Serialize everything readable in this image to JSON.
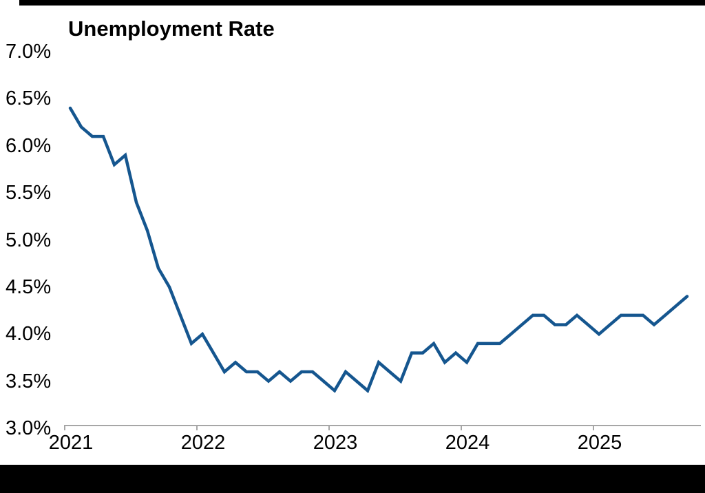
{
  "page": {
    "background_color": "#ffffff",
    "top_bar_color": "#000000",
    "bottom_bar_color": "#000000"
  },
  "chart_data": {
    "type": "line",
    "title": "Unemployment Rate",
    "frequency": "monthly",
    "x_start": "2021-01",
    "x_end": "2025-09",
    "x_tick_labels": [
      "2021",
      "2022",
      "2023",
      "2024",
      "2025"
    ],
    "y_ticks": [
      {
        "value": 3.0,
        "label": "3.0%"
      },
      {
        "value": 3.5,
        "label": "3.5%"
      },
      {
        "value": 4.0,
        "label": "4.0%"
      },
      {
        "value": 4.5,
        "label": "4.5%"
      },
      {
        "value": 5.0,
        "label": "5.0%"
      },
      {
        "value": 5.5,
        "label": "5.5%"
      },
      {
        "value": 6.0,
        "label": "6.0%"
      },
      {
        "value": 6.5,
        "label": "6.5%"
      },
      {
        "value": 7.0,
        "label": "7.0%"
      }
    ],
    "ylim": [
      3.0,
      7.0
    ],
    "grid": "off",
    "legend": "none",
    "axis_color": "#a6a6a6",
    "text_color": "#000000",
    "series": [
      {
        "name": "Unemployment Rate",
        "color": "#15568f",
        "values_by_year": {
          "2021": [
            6.4,
            6.2,
            6.1,
            6.1,
            5.8,
            5.9,
            5.4,
            5.1,
            4.7,
            4.5,
            4.2,
            3.9
          ],
          "2022": [
            4.0,
            3.8,
            3.6,
            3.7,
            3.6,
            3.6,
            3.5,
            3.6,
            3.5,
            3.6,
            3.6,
            3.5
          ],
          "2023": [
            3.4,
            3.6,
            3.5,
            3.4,
            3.7,
            3.6,
            3.5,
            3.8,
            3.8,
            3.9,
            3.7,
            3.8
          ],
          "2024": [
            3.7,
            3.9,
            3.9,
            3.9,
            4.0,
            4.1,
            4.2,
            4.2,
            4.1,
            4.1,
            4.2,
            4.1
          ],
          "2025": [
            4.0,
            4.1,
            4.2,
            4.2,
            4.2,
            4.1,
            4.2,
            4.3,
            4.4
          ]
        }
      }
    ]
  }
}
